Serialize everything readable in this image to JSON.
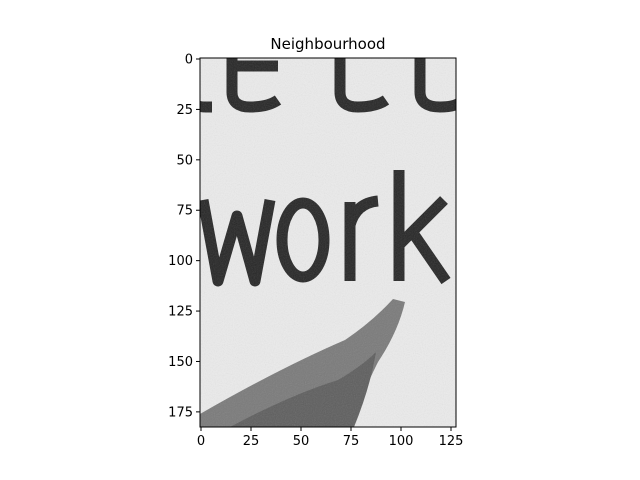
{
  "chart_data": {
    "type": "heatmap",
    "title": "Neighbourhood",
    "colormap": "grayscale",
    "image_width": 128,
    "image_height": 183,
    "x_ticks": [
      0,
      25,
      50,
      75,
      100,
      125
    ],
    "y_ticks": [
      0,
      25,
      50,
      75,
      100,
      125,
      150,
      175
    ],
    "xlim": [
      0,
      127
    ],
    "ylim": [
      182,
      0
    ],
    "depicted_text": [
      "be co",
      "work"
    ],
    "colors": {
      "background": "#ebebeb",
      "ink": "#262626",
      "shape": "#7a7a7a",
      "shape_dark": "#5e5e5e"
    }
  }
}
